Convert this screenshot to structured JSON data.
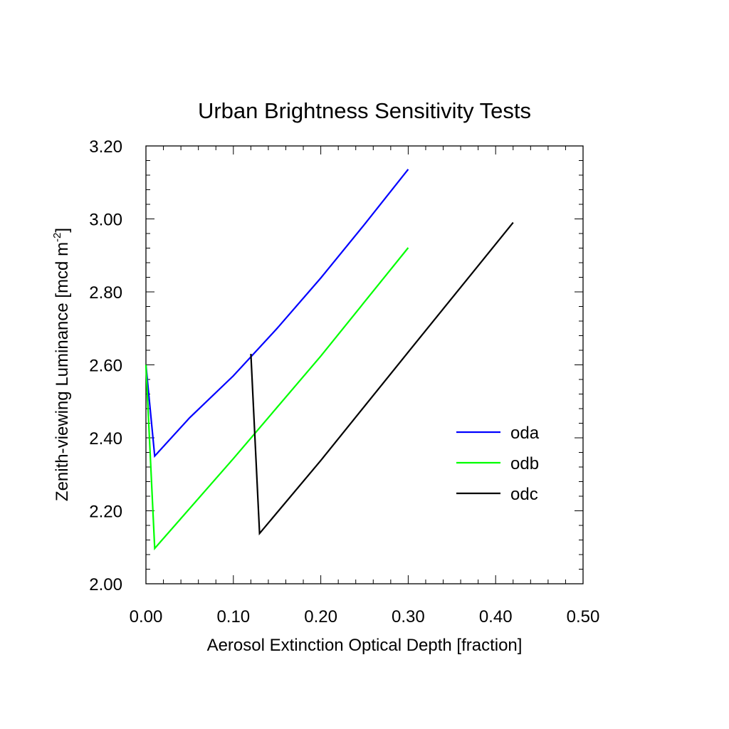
{
  "chart_data": {
    "type": "line",
    "title": "Urban Brightness Sensitivity Tests",
    "xlabel": "Aerosol Extinction Optical Depth [fraction]",
    "ylabel_main": "Zenith-viewing Luminance [mcd m",
    "ylabel_sup": "-2",
    "ylabel_end": "]",
    "xlim": [
      0.0,
      0.5
    ],
    "ylim": [
      2.0,
      3.2
    ],
    "x_ticks": [
      0.0,
      0.1,
      0.2,
      0.3,
      0.4,
      0.5
    ],
    "x_tick_labels": [
      "0.00",
      "0.10",
      "0.20",
      "0.30",
      "0.40",
      "0.50"
    ],
    "y_ticks": [
      2.0,
      2.2,
      2.4,
      2.6,
      2.8,
      3.0,
      3.2
    ],
    "y_tick_labels": [
      "2.00",
      "2.20",
      "2.40",
      "2.60",
      "2.80",
      "3.00",
      "3.20"
    ],
    "grid": false,
    "legend_position": "right",
    "series": [
      {
        "name": "oda",
        "color": "#0000ff",
        "x": [
          0.0,
          0.01,
          0.05,
          0.1,
          0.15,
          0.2,
          0.25,
          0.3
        ],
        "y": [
          2.6,
          2.35,
          2.455,
          2.57,
          2.7,
          2.838,
          2.985,
          3.136
        ]
      },
      {
        "name": "odb",
        "color": "#00ff00",
        "x": [
          0.0,
          0.01,
          0.1,
          0.2,
          0.3
        ],
        "y": [
          2.6,
          2.097,
          2.343,
          2.624,
          2.921
        ]
      },
      {
        "name": "odc",
        "color": "#000000",
        "x": [
          0.12,
          0.13,
          0.2,
          0.3,
          0.42
        ],
        "y": [
          2.63,
          2.138,
          2.338,
          2.635,
          2.99
        ]
      }
    ]
  }
}
